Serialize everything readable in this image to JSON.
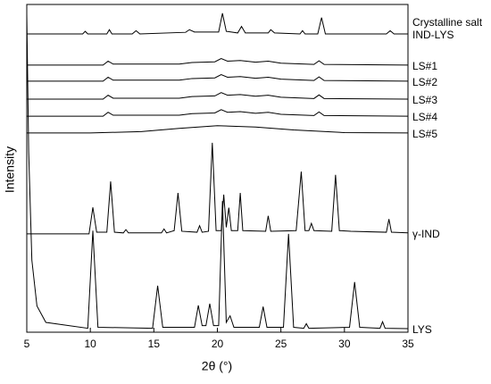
{
  "chart_data": {
    "type": "line",
    "y_label": "Intensity",
    "x_label": "2θ (°)",
    "xlim": [
      5,
      35
    ],
    "xticks": [
      5,
      10,
      15,
      20,
      25,
      30,
      35
    ],
    "ylim": [
      0,
      100
    ],
    "grid": false,
    "series": [
      {
        "name": "Crystalline salt IND-LYS",
        "color": "#000000",
        "x": [
          5,
          9.4,
          9.6,
          9.8,
          11.3,
          11.5,
          11.7,
          13.3,
          13.6,
          13.9,
          17.5,
          17.8,
          18.2,
          20.1,
          20.4,
          20.7,
          21.6,
          21.9,
          22.2,
          24,
          24.2,
          24.5,
          26.5,
          26.7,
          26.9,
          27.9,
          28.2,
          28.5,
          31.5,
          33.3,
          33.6,
          33.9,
          35
        ],
        "values": [
          91,
          91,
          91.8,
          91,
          91,
          92.3,
          91,
          91,
          92,
          91,
          91.5,
          92.3,
          91.6,
          91.6,
          97.3,
          91.8,
          91.3,
          93.3,
          91.3,
          91.3,
          92.3,
          91.3,
          91,
          92,
          91,
          91,
          96,
          91,
          91,
          91,
          92,
          91,
          91
        ]
      },
      {
        "name": "LS#1",
        "color": "#000000",
        "x": [
          5,
          11,
          11.4,
          11.8,
          17,
          18,
          19.8,
          20.3,
          20.8,
          21.8,
          23,
          24,
          25,
          27.6,
          28,
          28.4,
          35
        ],
        "values": [
          81.5,
          81.5,
          82.7,
          81.8,
          81.8,
          82.3,
          82.5,
          83.5,
          82.7,
          82.9,
          82.4,
          82.7,
          82.1,
          81.7,
          82.8,
          81.7,
          81.5
        ]
      },
      {
        "name": "LS#2",
        "color": "#000000",
        "x": [
          5,
          11,
          11.4,
          11.8,
          17,
          18,
          19.8,
          20.3,
          20.8,
          21.8,
          23,
          24,
          25,
          27.6,
          28,
          28.4,
          35
        ],
        "values": [
          76.6,
          76.6,
          77.8,
          76.9,
          76.9,
          77.4,
          77.6,
          78.6,
          77.8,
          78,
          77.5,
          77.8,
          77.2,
          76.8,
          77.9,
          76.8,
          76.6
        ]
      },
      {
        "name": "LS#3",
        "color": "#000000",
        "x": [
          5,
          11,
          11.4,
          11.8,
          17,
          18,
          19.8,
          20.3,
          20.8,
          21.8,
          23,
          24,
          25,
          27.6,
          28,
          28.4,
          35
        ],
        "values": [
          71.1,
          71.1,
          72.3,
          71.4,
          71.4,
          71.9,
          72.1,
          73.1,
          72.3,
          72.5,
          72,
          72.3,
          71.7,
          71.3,
          72.4,
          71.3,
          71.1
        ]
      },
      {
        "name": "LS#4",
        "color": "#000000",
        "x": [
          5,
          11,
          11.4,
          11.8,
          17,
          18,
          19.8,
          20.3,
          20.8,
          21.8,
          23,
          24,
          25,
          27.6,
          28,
          28.4,
          35
        ],
        "values": [
          65.9,
          65.9,
          67.1,
          66.2,
          66.2,
          66.7,
          66.9,
          67.9,
          67.1,
          67.3,
          66.8,
          67.1,
          66.5,
          66.1,
          67.2,
          66.1,
          65.9
        ]
      },
      {
        "name": "LS#5",
        "color": "#000000",
        "x": [
          5,
          10,
          14,
          17,
          20,
          23,
          26,
          30,
          35
        ],
        "values": [
          60.8,
          60.8,
          61.2,
          62.2,
          63,
          62.6,
          61.7,
          60.9,
          60.8
        ]
      },
      {
        "name": "γ-IND",
        "color": "#000000",
        "x": [
          5,
          9.9,
          10.2,
          10.5,
          11.3,
          11.6,
          11.9,
          12.6,
          12.8,
          13,
          15.6,
          15.8,
          16,
          16.6,
          16.9,
          17.2,
          18.4,
          18.6,
          18.8,
          19.3,
          19.6,
          19.9,
          20.3,
          20.5,
          20.7,
          20.9,
          21.1,
          21.6,
          21.8,
          22,
          23.8,
          24,
          24.2,
          26.2,
          26.6,
          26.9,
          27.2,
          27.4,
          27.6,
          29,
          29.3,
          29.6,
          30.5,
          33.3,
          33.5,
          33.7,
          35
        ],
        "values": [
          30,
          30,
          38.1,
          30.5,
          30.5,
          46,
          30.5,
          30.3,
          31.3,
          30.3,
          30.3,
          31.5,
          30.3,
          31,
          42.5,
          30.8,
          30.5,
          32.5,
          30.5,
          30.8,
          57.8,
          31,
          31,
          42,
          32,
          38,
          31,
          31,
          42.5,
          31,
          30.8,
          35.5,
          30.8,
          31,
          49,
          31,
          31,
          33.2,
          31,
          30.8,
          48,
          31,
          30.8,
          30.5,
          34.5,
          30.5,
          30.3
        ]
      },
      {
        "name": "LYS",
        "color": "#000000",
        "x": [
          5,
          5.15,
          5.4,
          5.8,
          6.5,
          9.8,
          10.2,
          10.6,
          14.9,
          15.3,
          15.7,
          18.2,
          18.5,
          18.8,
          19.1,
          19.4,
          19.7,
          20.1,
          20.4,
          20.7,
          21,
          21.3,
          23.3,
          23.6,
          23.9,
          25.2,
          25.6,
          26,
          26.8,
          27,
          27.2,
          30.4,
          30.8,
          31.2,
          32.8,
          33,
          33.2,
          35
        ],
        "values": [
          97,
          55,
          22,
          8,
          3,
          1.2,
          31,
          1.5,
          1.2,
          14.2,
          1.5,
          1.5,
          8.2,
          2,
          2,
          8.7,
          2,
          2,
          40,
          3,
          5,
          1.5,
          1.5,
          7.8,
          1.5,
          1.5,
          30,
          1.5,
          1.2,
          2.6,
          1.2,
          1.5,
          15.3,
          1.5,
          1.2,
          3.2,
          1.2,
          1.1
        ]
      }
    ]
  }
}
